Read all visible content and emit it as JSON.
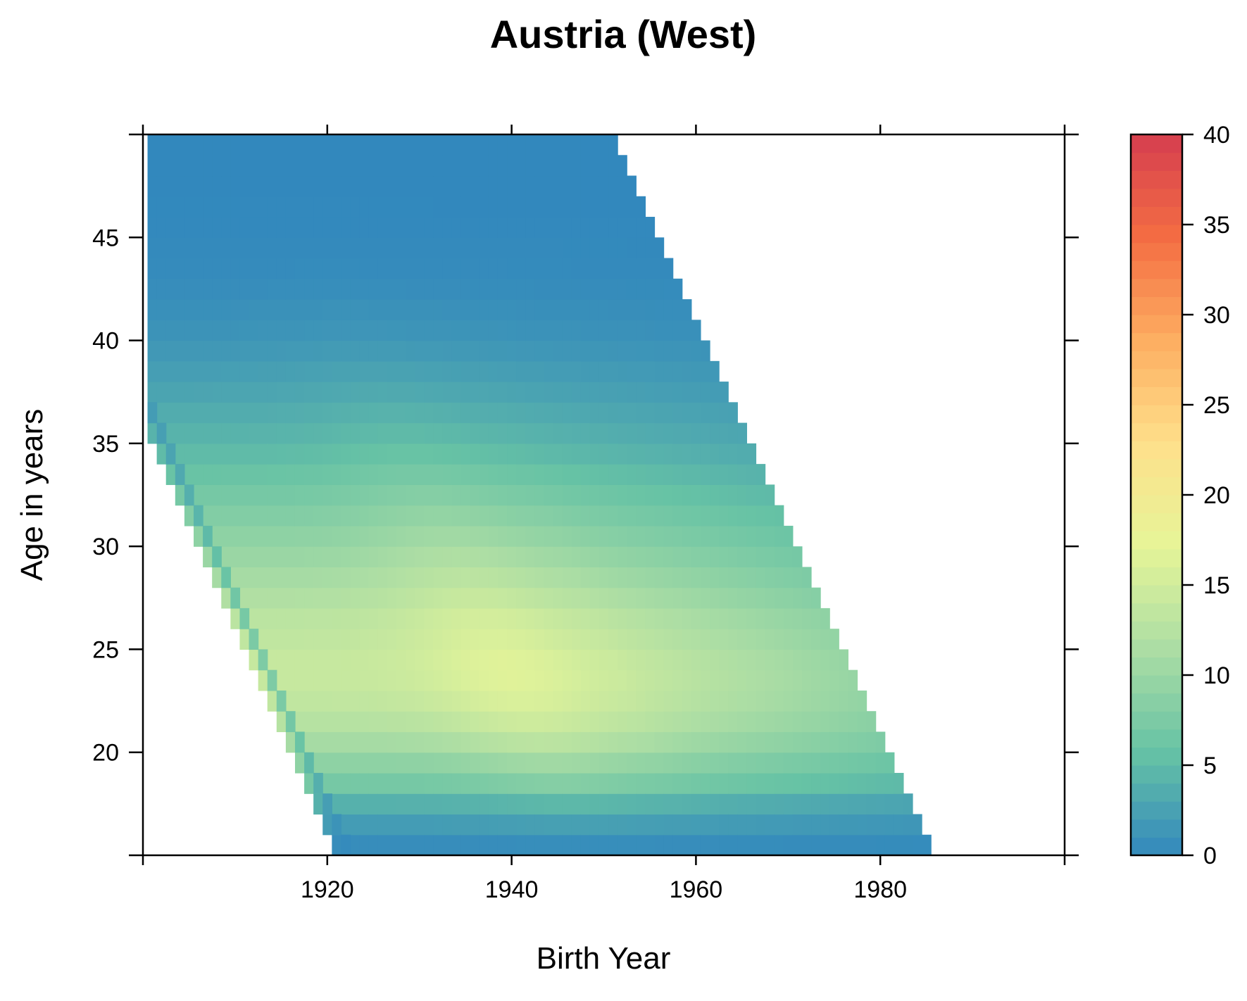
{
  "chart_data": {
    "type": "heatmap",
    "title": "Austria (West)",
    "xlabel": "Birth Year",
    "ylabel": "Age in years",
    "xlim": [
      1900,
      2000
    ],
    "ylim": [
      15,
      50
    ],
    "x_ticks": [
      {
        "value": 1920,
        "label": "1920"
      },
      {
        "value": 1940,
        "label": "1940"
      },
      {
        "value": 1960,
        "label": "1960"
      },
      {
        "value": 1980,
        "label": "1980"
      }
    ],
    "y_ticks": [
      {
        "value": 20,
        "label": "20"
      },
      {
        "value": 25,
        "label": "25"
      },
      {
        "value": 30,
        "label": "30"
      },
      {
        "value": 35,
        "label": "35"
      },
      {
        "value": 40,
        "label": "40"
      },
      {
        "value": 45,
        "label": "45"
      }
    ],
    "colorbar": {
      "range": [
        0,
        40
      ],
      "ticks": [
        {
          "value": 0,
          "label": "0"
        },
        {
          "value": 5,
          "label": "5"
        },
        {
          "value": 10,
          "label": "10"
        },
        {
          "value": 15,
          "label": "15"
        },
        {
          "value": 20,
          "label": "20"
        },
        {
          "value": 25,
          "label": "25"
        },
        {
          "value": 30,
          "label": "30"
        },
        {
          "value": 35,
          "label": "35"
        },
        {
          "value": 40,
          "label": "40"
        }
      ],
      "palette": [
        "#3288bd",
        "#66c2a5",
        "#abdda4",
        "#e6f598",
        "#fee08b",
        "#fdae61",
        "#f46d43",
        "#d53e4f"
      ]
    },
    "observation_period": [
      1936,
      2000
    ],
    "birth_year_range": [
      1901,
      1999
    ],
    "age_range": [
      15,
      49
    ],
    "isolated_diagonal": {
      "from_birth_year": 1901,
      "to_birth_year": 1922
    },
    "fertility_rate_profile_by_age": [
      {
        "age": 15,
        "rate": 0.5
      },
      {
        "age": 16,
        "rate": 2
      },
      {
        "age": 17,
        "rate": 4
      },
      {
        "age": 18,
        "rate": 7
      },
      {
        "age": 19,
        "rate": 9
      },
      {
        "age": 20,
        "rate": 11
      },
      {
        "age": 21,
        "rate": 12.5
      },
      {
        "age": 22,
        "rate": 13.5
      },
      {
        "age": 23,
        "rate": 14
      },
      {
        "age": 24,
        "rate": 14
      },
      {
        "age": 25,
        "rate": 13.5
      },
      {
        "age": 26,
        "rate": 13
      },
      {
        "age": 27,
        "rate": 12
      },
      {
        "age": 28,
        "rate": 11
      },
      {
        "age": 29,
        "rate": 10
      },
      {
        "age": 30,
        "rate": 9
      },
      {
        "age": 31,
        "rate": 8
      },
      {
        "age": 32,
        "rate": 7
      },
      {
        "age": 33,
        "rate": 6
      },
      {
        "age": 34,
        "rate": 5
      },
      {
        "age": 35,
        "rate": 4.2
      },
      {
        "age": 36,
        "rate": 3.5
      },
      {
        "age": 37,
        "rate": 2.8
      },
      {
        "age": 38,
        "rate": 2.2
      },
      {
        "age": 39,
        "rate": 1.6
      },
      {
        "age": 40,
        "rate": 1.1
      },
      {
        "age": 41,
        "rate": 0.8
      },
      {
        "age": 42,
        "rate": 0.5
      },
      {
        "age": 43,
        "rate": 0.3
      },
      {
        "age": 44,
        "rate": 0.2
      },
      {
        "age": 45,
        "rate": 0.1
      },
      {
        "age": 46,
        "rate": 0.05
      },
      {
        "age": 47,
        "rate": 0.03
      },
      {
        "age": 48,
        "rate": 0.02
      },
      {
        "age": 49,
        "rate": 0.01
      }
    ]
  }
}
